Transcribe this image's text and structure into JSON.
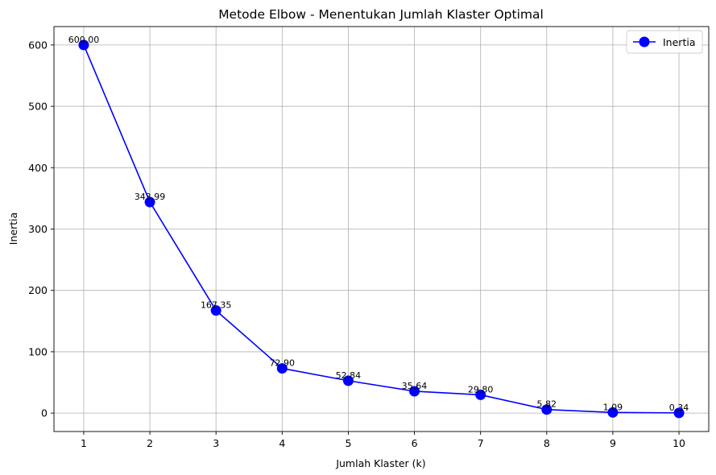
{
  "chart_data": {
    "type": "line",
    "title": "Metode Elbow - Menentukan Jumlah Klaster Optimal",
    "xlabel": "Jumlah Klaster (k)",
    "ylabel": "Inertia",
    "x": [
      1,
      2,
      3,
      4,
      5,
      6,
      7,
      8,
      9,
      10
    ],
    "series": [
      {
        "name": "Inertia",
        "values": [
          600.0,
          343.99,
          167.35,
          72.9,
          52.84,
          35.64,
          29.8,
          5.82,
          1.09,
          0.34
        ],
        "labels": [
          "600.00",
          "343.99",
          "167.35",
          "72.90",
          "52.84",
          "35.64",
          "29.80",
          "5.82",
          "1.09",
          "0.34"
        ],
        "color": "#0000ff",
        "marker": "circle"
      }
    ],
    "xlim": [
      0.55,
      10.45
    ],
    "ylim": [
      -30,
      630
    ],
    "xticks": [
      1,
      2,
      3,
      4,
      5,
      6,
      7,
      8,
      9,
      10
    ],
    "yticks": [
      0,
      100,
      200,
      300,
      400,
      500,
      600
    ],
    "grid": true,
    "legend": "top-right"
  }
}
